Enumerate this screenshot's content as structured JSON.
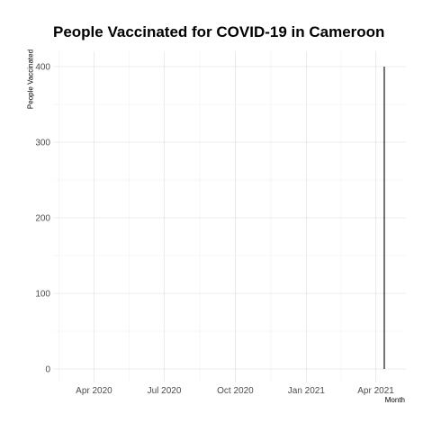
{
  "chart_data": {
    "type": "line",
    "title": "People Vaccinated for COVID-19 in Cameroon",
    "xlabel": "Month",
    "ylabel": "People Vaccinated",
    "x_ticks": [
      "Apr 2020",
      "Jul 2020",
      "Oct 2020",
      "Jan 2021",
      "Apr 2021"
    ],
    "y_ticks": [
      "0",
      "100",
      "200",
      "300",
      "400"
    ],
    "ylim": [
      0,
      400
    ],
    "xlim": [
      "2020-02-08",
      "2021-05-10"
    ],
    "grid": true,
    "series": [
      {
        "x": [
          "2021-04-12",
          "2021-04-12"
        ],
        "y": [
          0,
          400
        ],
        "color": "#000000"
      }
    ]
  }
}
